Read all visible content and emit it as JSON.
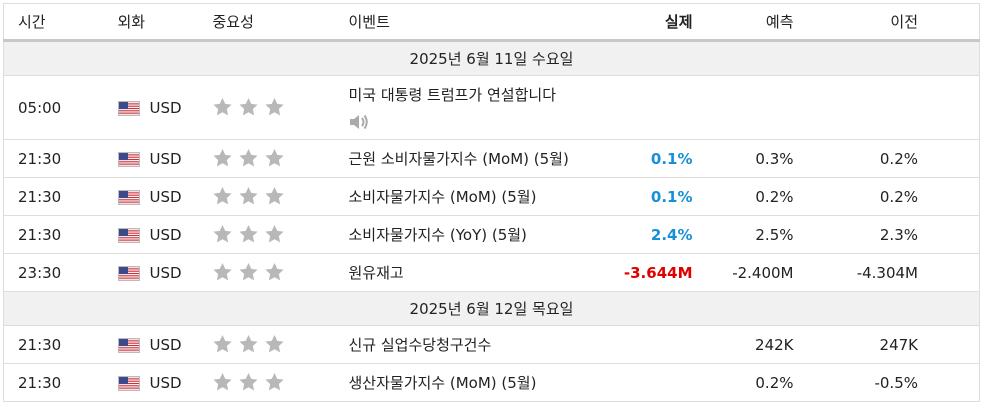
{
  "header": {
    "columns": [
      "시간",
      "외화",
      "중요성",
      "이벤트",
      "실제",
      "예측",
      "이전"
    ]
  },
  "groups": [
    {
      "date": "2025년 6월 11일 수요일",
      "events": [
        {
          "time": "05:00",
          "currency": "USD",
          "event": "미국 대통령 트럼프가 연설합니다"
        },
        {
          "time": "21:30",
          "currency": "USD",
          "event": "근원 소비자물가지수 (MoM) (5월)",
          "actual": "0.1%",
          "actual_color": "#1890d8",
          "forecast": "0.3%",
          "previous": "0.2%"
        },
        {
          "time": "21:30",
          "currency": "USD",
          "event": "소비자물가지수 (MoM) (5월)",
          "actual": "0.1%",
          "actual_color": "#1890d8",
          "forecast": "0.2%",
          "previous": "0.2%"
        },
        {
          "time": "21:30",
          "currency": "USD",
          "event": "소비자물가지수 (YoY) (5월)",
          "actual": "2.4%",
          "actual_color": "#1890d8",
          "forecast": "2.5%",
          "previous": "2.3%"
        },
        {
          "time": "23:30",
          "currency": "USD",
          "event": "원유재고",
          "actual": "-3.644M",
          "actual_color": "#e00000",
          "forecast": "-2.400M",
          "previous": "-4.304M"
        }
      ]
    },
    {
      "date": "2025년 6월 12일 목요일",
      "events": [
        {
          "time": "21:30",
          "currency": "USD",
          "event": "신규 실업수당청구건수",
          "forecast": "242K",
          "previous": "247K"
        },
        {
          "time": "21:30",
          "currency": "USD",
          "event": "생산자물가지수 (MoM) (5월)",
          "forecast": "0.2%",
          "previous": "-0.5%"
        }
      ]
    }
  ]
}
